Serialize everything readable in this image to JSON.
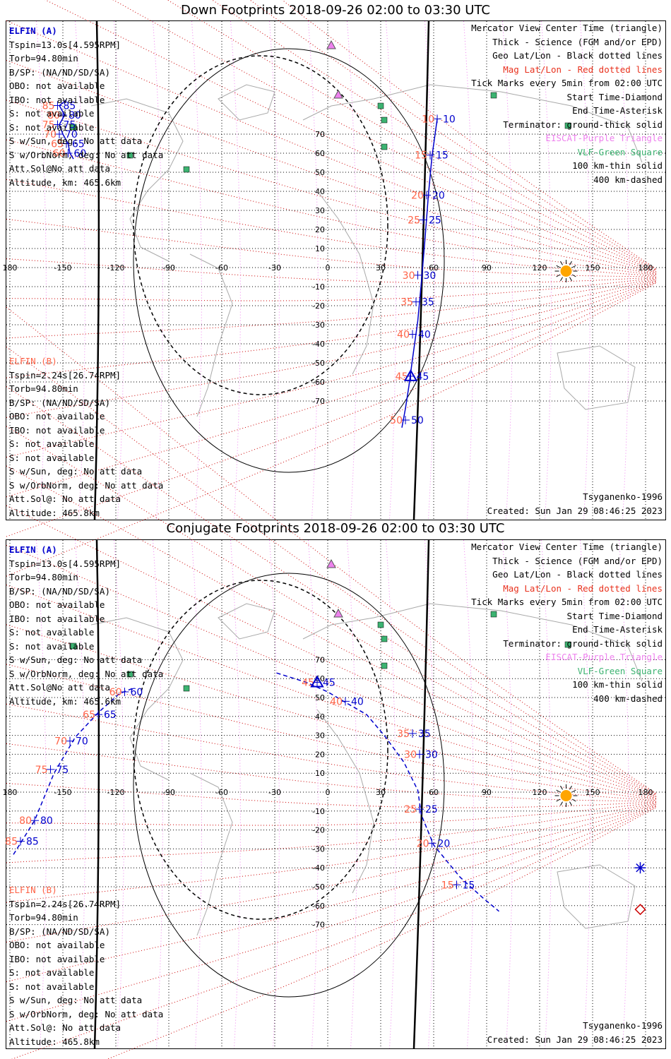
{
  "colors": {
    "trajectory": "#0000cc",
    "time_label_red": "#ff6347",
    "mag_grid": "#cc0000",
    "geo_grid": "#000000",
    "eiscat": "#ee82ee",
    "vlf": "#3cb371",
    "sun": "#ffa500",
    "coastline": "#a9a9a9"
  },
  "map_labels": {
    "lon_ticks": [
      "180",
      "-150",
      "-120",
      "-90",
      "-60",
      "-30",
      "0",
      "30",
      "60",
      "90",
      "120",
      "150",
      "180"
    ],
    "lat_ticks": [
      "70",
      "60",
      "50",
      "40",
      "30",
      "20",
      "10",
      "-10",
      "-20",
      "-30",
      "-40",
      "-50",
      "-60",
      "-70"
    ]
  },
  "panels": [
    {
      "title": "Down Footprints 2018-09-26 02:00 to 03:30 UTC",
      "elfin_a": {
        "name": "ELFIN (A)",
        "lines": [
          "Tspin=13.0s[4.595RPM]",
          "Torb=94.80min",
          "B/SP: (NA/ND/SD/SA)",
          "OBO: not available",
          "IBO: not available",
          "S: not available",
          "S: not available",
          "S w/Sun, deg: No att data",
          "S w/OrbNorm, deg: No att data",
          "Att.Sol@No att data",
          "Altitude, km: 465.6km"
        ]
      },
      "elfin_b": {
        "name": "ELFIN (B)",
        "lines": [
          "Tspin=2.24s[26.74RPM]",
          "Torb=94.80min",
          "B/SP: (NA/ND/SD/SA)",
          "OBO: not available",
          "IBO: not available",
          "S: not available",
          "S: not available",
          "S w/Sun, deg: No att data",
          "S w/OrbNorm, deg: No att data",
          "Att.Sol@: No att data",
          "Altitude: 465.8km"
        ]
      },
      "legend": [
        {
          "text": "Mercator View Center Time (triangle)",
          "color": "#000000"
        },
        {
          "text": "Thick - Science (FGM and/or EPD)",
          "color": "#000000"
        },
        {
          "text": "Geo Lat/Lon - Black dotted lines",
          "color": "#000000"
        },
        {
          "text": "Mag Lat/Lon - Red dotted lines",
          "color": "#e8321e"
        },
        {
          "text": "Tick Marks every 5min from 02:00 UTC",
          "color": "#000000"
        },
        {
          "text": "Start Time-Diamond",
          "color": "#000000"
        },
        {
          "text": "End Time-Asterisk",
          "color": "#000000"
        },
        {
          "text": "Terminator: ground-thick solid",
          "color": "#000000"
        },
        {
          "text": "EISCAT-Purple Triangle",
          "color": "#ee82ee"
        },
        {
          "text": "VLF-Green Square",
          "color": "#3cb371"
        },
        {
          "text": "100 km-thin solid",
          "color": "#000000"
        },
        {
          "text": "400 km-dashed",
          "color": "#000000"
        }
      ],
      "model": "Tsyganenko-1996",
      "created": "Created: Sun Jan 29 08:46:25 2023",
      "track_a": {
        "dashed": false,
        "points": [
          [
            -148,
            88
          ],
          [
            -152,
            85
          ],
          [
            -149,
            80
          ],
          [
            -152,
            75
          ],
          [
            -150,
            70
          ],
          [
            -147,
            65
          ],
          [
            -146,
            60
          ],
          [
            -144,
            57
          ]
        ],
        "ticks": [
          {
            "label": "85",
            "lon": -153,
            "lat": 85
          },
          {
            "label": "80",
            "lon": -150,
            "lat": 80
          },
          {
            "label": "75",
            "lon": -153,
            "lat": 75
          },
          {
            "label": "70",
            "lon": -152,
            "lat": 70
          },
          {
            "label": "65",
            "lon": -148,
            "lat": 65
          },
          {
            "label": "60",
            "lon": -147,
            "lat": 60
          }
        ]
      },
      "track_b": {
        "dashed": false,
        "points": [
          [
            42,
            -84
          ],
          [
            44,
            -74
          ],
          [
            46,
            -62
          ],
          [
            48,
            -48
          ],
          [
            51,
            -28
          ],
          [
            53,
            -8
          ],
          [
            55,
            14
          ],
          [
            57,
            38
          ],
          [
            59,
            58
          ],
          [
            62,
            78
          ]
        ],
        "ticks": [
          {
            "label": "10",
            "lon": 62,
            "lat": 78
          },
          {
            "label": "15",
            "lon": 58,
            "lat": 59
          },
          {
            "label": "20",
            "lon": 56,
            "lat": 38
          },
          {
            "label": "25",
            "lon": 54,
            "lat": 25
          },
          {
            "label": "30",
            "lon": 51,
            "lat": -4
          },
          {
            "label": "35",
            "lon": 50,
            "lat": -18
          },
          {
            "label": "40",
            "lon": 48,
            "lat": -35
          },
          {
            "label": "45",
            "lon": 47,
            "lat": -57
          },
          {
            "label": "50",
            "lon": 44,
            "lat": -80
          }
        ]
      },
      "center_triangle": {
        "lon": 47,
        "lat": -57
      }
    },
    {
      "title": "Conjugate Footprints 2018-09-26 02:00 to 03:30 UTC",
      "elfin_a": {
        "name": "ELFIN (A)",
        "lines": [
          "Tspin=13.0s[4.595RPM]",
          "Torb=94.80min",
          "B/SP: (NA/ND/SD/SA)",
          "OBO: not available",
          "IBO: not available",
          "S: not available",
          "S: not available",
          "S w/Sun, deg: No att data",
          "S w/OrbNorm, deg: No att data",
          "Att.Sol@No att data",
          "Altitude, km: 465.6km"
        ]
      },
      "elfin_b": {
        "name": "ELFIN (B)",
        "lines": [
          "Tspin=2.24s[26.74RPM]",
          "Torb=94.80min",
          "B/SP: (NA/ND/SD/SA)",
          "OBO: not available",
          "IBO: not available",
          "S: not available",
          "S: not available",
          "S w/Sun, deg: No att data",
          "S w/OrbNorm, deg: No att data",
          "Att.Sol@: No att data",
          "Altitude: 465.8km"
        ]
      },
      "legend": [
        {
          "text": "Mercator View Center Time (triangle)",
          "color": "#000000"
        },
        {
          "text": "Thick - Science (FGM and/or EPD)",
          "color": "#000000"
        },
        {
          "text": "Geo Lat/Lon - Black dotted lines",
          "color": "#000000"
        },
        {
          "text": "Mag Lat/Lon - Red dotted lines",
          "color": "#e8321e"
        },
        {
          "text": "Tick Marks every 5min from 02:00 UTC",
          "color": "#000000"
        },
        {
          "text": "Start Time-Diamond",
          "color": "#000000"
        },
        {
          "text": "End Time-Asterisk",
          "color": "#000000"
        },
        {
          "text": "Terminator: ground-thick solid",
          "color": "#000000"
        },
        {
          "text": "EISCAT-Purple Triangle",
          "color": "#ee82ee"
        },
        {
          "text": "VLF-Green Square",
          "color": "#3cb371"
        },
        {
          "text": "100 km-thin solid",
          "color": "#000000"
        },
        {
          "text": "400 km-dashed",
          "color": "#000000"
        }
      ],
      "model": "Tsyganenko-1996",
      "created": "Created: Sun Jan 29 08:46:25 2023",
      "track_a": {
        "dashed": true,
        "points": [
          [
            -178,
            -33
          ],
          [
            -166,
            -15
          ],
          [
            -155,
            10
          ],
          [
            -143,
            29
          ],
          [
            -130,
            42
          ],
          [
            -118,
            52
          ],
          [
            -110,
            55
          ]
        ],
        "ticks": [
          {
            "label": "85",
            "lon": -174,
            "lat": -26
          },
          {
            "label": "80",
            "lon": -166,
            "lat": -15
          },
          {
            "label": "75",
            "lon": -157,
            "lat": 12
          },
          {
            "label": "70",
            "lon": -146,
            "lat": 27
          },
          {
            "label": "65",
            "lon": -130,
            "lat": 41
          },
          {
            "label": "60",
            "lon": -115,
            "lat": 53
          }
        ]
      },
      "track_b": {
        "dashed": true,
        "points": [
          [
            -29,
            63
          ],
          [
            -12,
            58
          ],
          [
            0,
            53
          ],
          [
            9,
            48
          ],
          [
            22,
            41
          ],
          [
            32,
            30
          ],
          [
            43,
            16
          ],
          [
            51,
            1
          ],
          [
            53,
            -12
          ],
          [
            60,
            -28
          ],
          [
            75,
            -45
          ],
          [
            88,
            -56
          ],
          [
            97,
            -63
          ]
        ],
        "ticks": [
          {
            "label": "45",
            "lon": -6,
            "lat": 58
          },
          {
            "label": "40",
            "lon": 10,
            "lat": 48
          },
          {
            "label": "35",
            "lon": 48,
            "lat": 31
          },
          {
            "label": "30",
            "lon": 52,
            "lat": 20
          },
          {
            "label": "25",
            "lon": 52,
            "lat": -9
          },
          {
            "label": "20",
            "lon": 59,
            "lat": -27
          },
          {
            "label": "15",
            "lon": 73,
            "lat": -49
          }
        ]
      },
      "center_triangle": {
        "lon": -6,
        "lat": 58
      },
      "end_asterisk": {
        "lon": 177,
        "lat": -40
      },
      "start_diamond": {
        "lon": 177,
        "lat": -62
      }
    }
  ]
}
